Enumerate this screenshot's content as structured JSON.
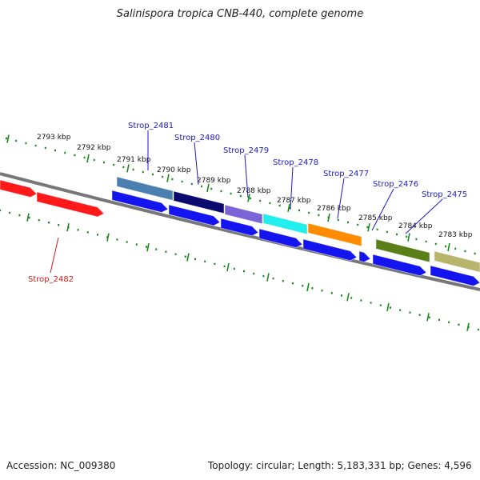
{
  "title": "Salinispora tropica CNB-440, complete genome",
  "footer": {
    "accession": "Accession: NC_009380",
    "stats": "Topology: circular; Length: 5,183,331 bp; Genes: 4,596"
  },
  "ticks": [
    "2793 kbp",
    "2792 kbp",
    "2791 kbp",
    "2790 kbp",
    "2789 kbp",
    "2788 kbp",
    "2787 kbp",
    "2786 kbp",
    "2785 kbp",
    "2784 kbp",
    "2783 kbp"
  ],
  "genes": [
    {
      "id": "Strop_2482",
      "color": "#ff1a1a"
    },
    {
      "id": "Strop_2481",
      "color": "#4a7fb0"
    },
    {
      "id": "Strop_2480",
      "color": "#0a0a6e"
    },
    {
      "id": "Strop_2479",
      "color": "#7a64d8"
    },
    {
      "id": "Strop_2478",
      "color": "#22eeee"
    },
    {
      "id": "Strop_2477",
      "color": "#ff8c00"
    },
    {
      "id": "Strop_2476",
      "color": "#5a7f18"
    },
    {
      "id": "Strop_2475",
      "color": "#b8b46c"
    }
  ],
  "colors": {
    "cds": "#1414ee",
    "backbone": "#777777",
    "ticks": "#1a8a1a",
    "leader": "#1a1acc",
    "leader_red": "#cc1a1a"
  }
}
